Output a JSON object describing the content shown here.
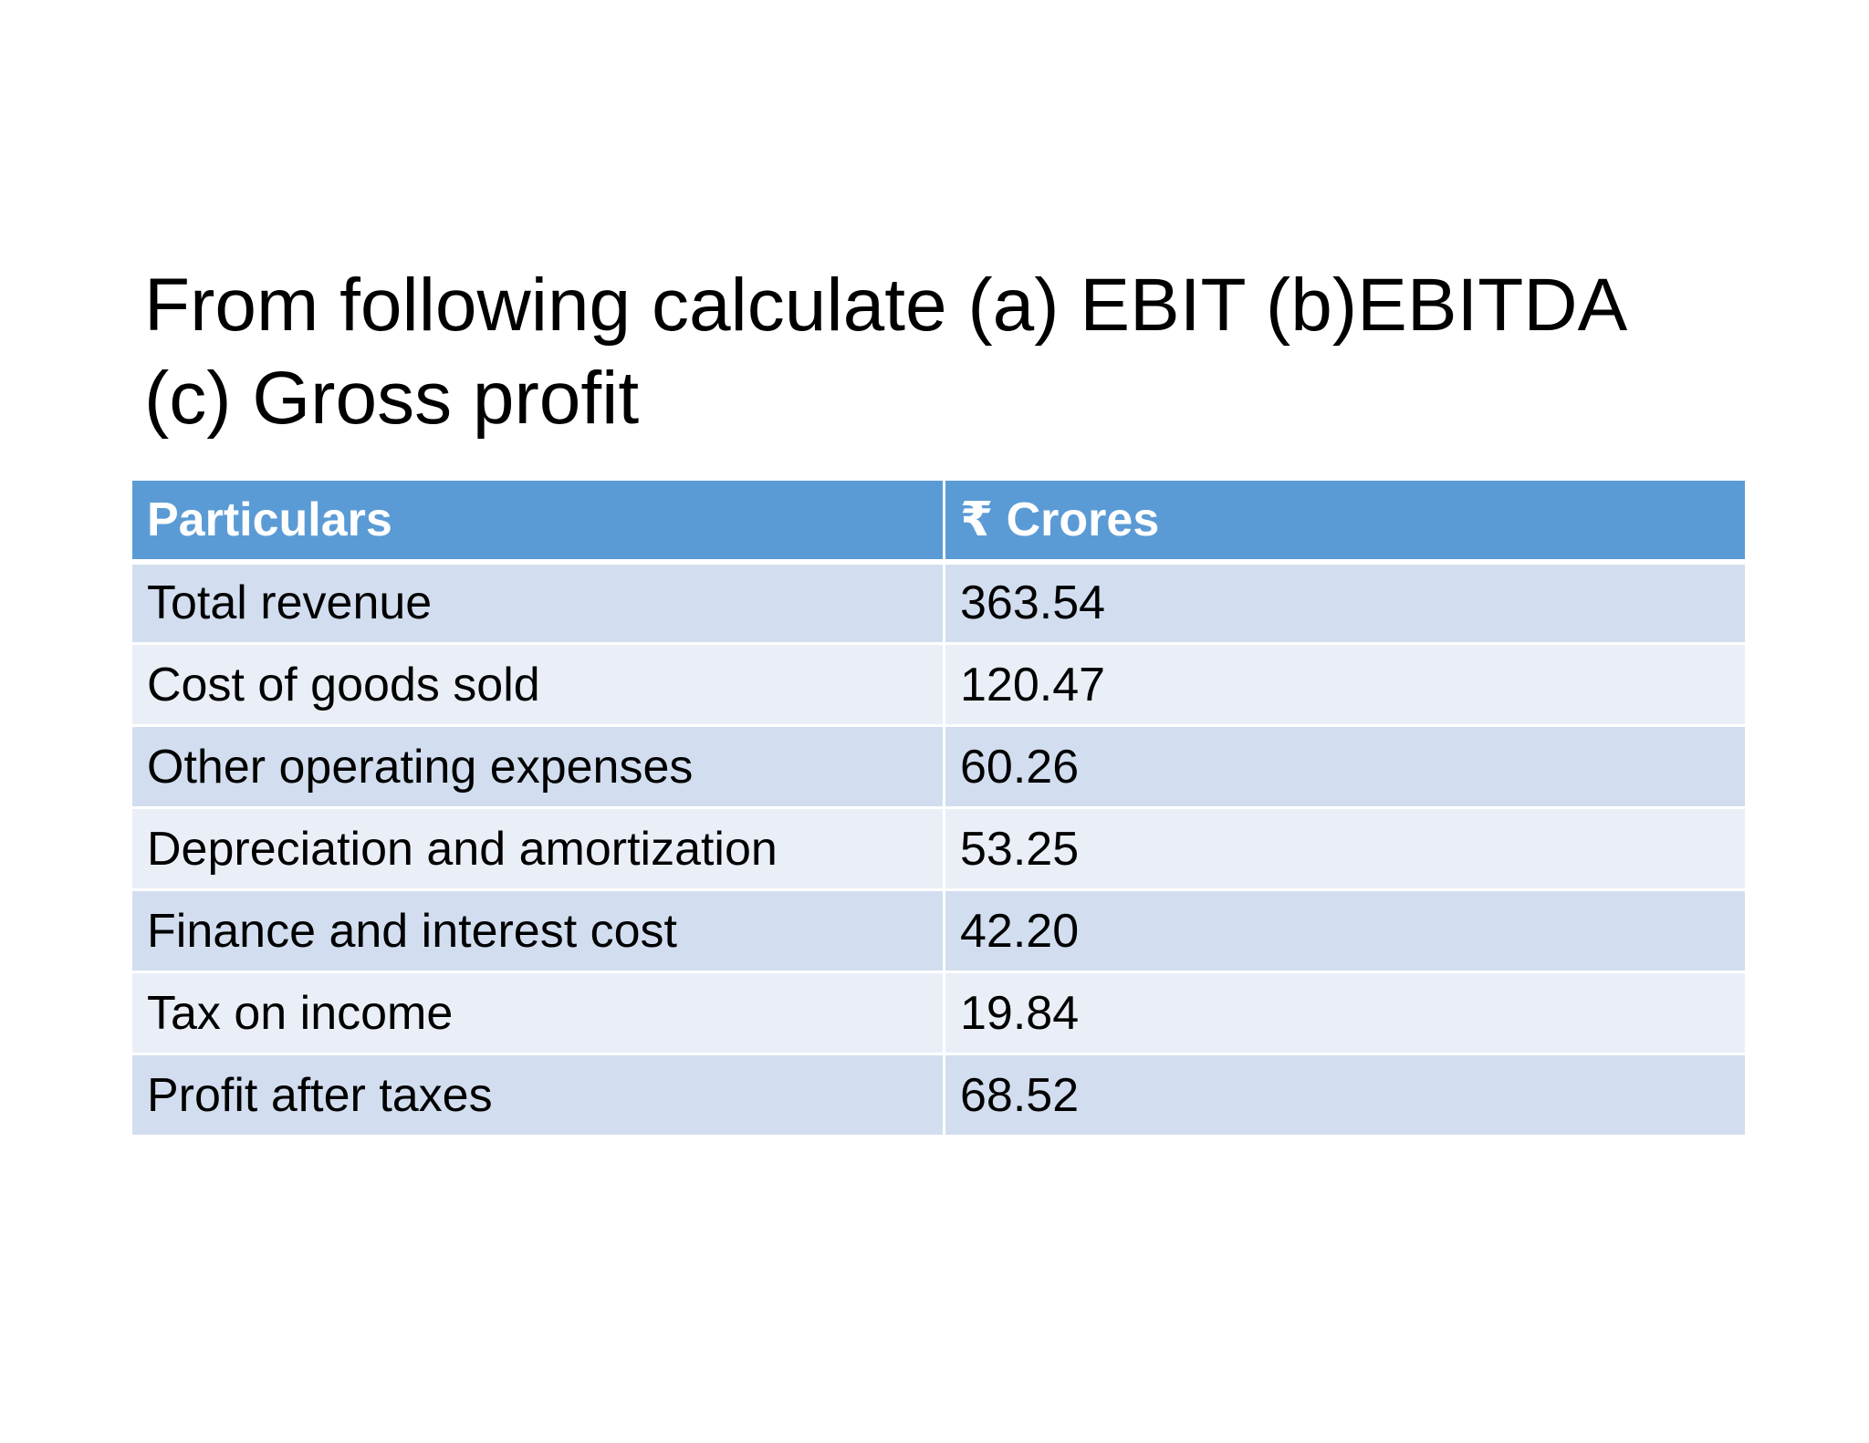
{
  "title": {
    "line1": "From following calculate (a) EBIT (b)EBITDA",
    "line2": "(c) Gross profit"
  },
  "table": {
    "headers": [
      "Particulars",
      "₹ Crores"
    ],
    "rows": [
      [
        "Total revenue",
        "363.54"
      ],
      [
        "Cost of goods sold",
        "120.47"
      ],
      [
        "Other operating expenses",
        "60.26"
      ],
      [
        "Depreciation and amortization",
        "53.25"
      ],
      [
        "Finance and interest cost",
        "42.20"
      ],
      [
        "Tax on income",
        "19.84"
      ],
      [
        "Profit after taxes",
        "68.52"
      ]
    ]
  },
  "colors": {
    "header_bg": "#5b9bd5",
    "row_dark": "#d2deef",
    "row_light": "#eaeff7"
  }
}
